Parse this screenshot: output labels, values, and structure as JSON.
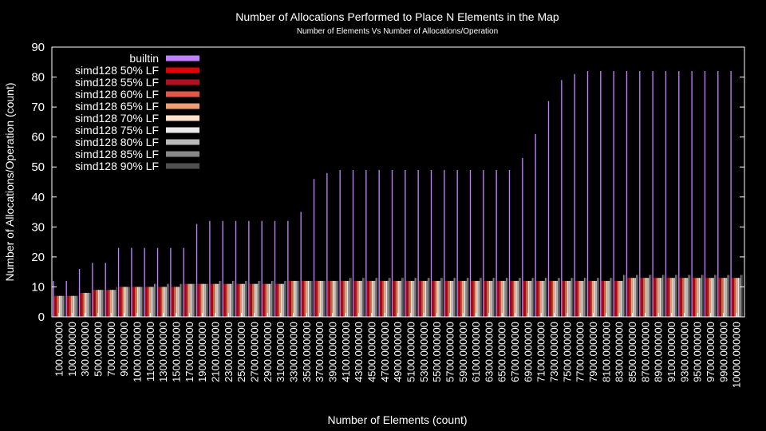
{
  "chart_data": {
    "type": "bar",
    "title": "Number of Allocations Performed to Place N Elements in the Map",
    "subtitle": "Number of Elements Vs Number of Allocations/Operation",
    "xlabel": "Number of Elements (count)",
    "ylabel": "Number of Allocations/Operation (count)",
    "ylim": [
      0,
      90
    ],
    "yticks": [
      "0",
      "10",
      "20",
      "30",
      "40",
      "50",
      "60",
      "70",
      "80",
      "90"
    ],
    "grid": false,
    "legend_position": "top-left",
    "categories": [
      "100.000000",
      "100.000000",
      "300.000000",
      "500.000000",
      "700.000000",
      "900.000000",
      "1000.000000",
      "1100.000000",
      "1300.000000",
      "1500.000000",
      "1700.000000",
      "1900.000000",
      "2100.000000",
      "2300.000000",
      "2500.000000",
      "2700.000000",
      "2900.000000",
      "3100.000000",
      "3300.000000",
      "3500.000000",
      "3700.000000",
      "3900.000000",
      "4100.000000",
      "4300.000000",
      "4500.000000",
      "4700.000000",
      "4900.000000",
      "5100.000000",
      "5300.000000",
      "5500.000000",
      "5700.000000",
      "5900.000000",
      "6100.000000",
      "6300.000000",
      "6500.000000",
      "6700.000000",
      "6900.000000",
      "7100.000000",
      "7300.000000",
      "7500.000000",
      "7700.000000",
      "7900.000000",
      "8100.000000",
      "8300.000000",
      "8500.000000",
      "8700.000000",
      "8900.000000",
      "9100.000000",
      "9300.000000",
      "9500.000000",
      "9700.000000",
      "9900.000000",
      "10000.000000"
    ],
    "series": [
      {
        "name": "builtin",
        "color": "#c080ff",
        "values": [
          12,
          12,
          16,
          18,
          18,
          23,
          23,
          23,
          23,
          23,
          23,
          31,
          32,
          32,
          32,
          32,
          32,
          32,
          32,
          35,
          46,
          48,
          49,
          49,
          49,
          49,
          49,
          49,
          49,
          49,
          49,
          49,
          49,
          49,
          49,
          49,
          53,
          61,
          72,
          79,
          81,
          82,
          82,
          82,
          82,
          82,
          82,
          82,
          82,
          82,
          82,
          82,
          82
        ]
      },
      {
        "name": "simd128 50% LF",
        "color": "#e00000",
        "values": [
          7,
          7,
          8,
          9,
          9,
          10,
          10,
          10,
          10,
          10,
          11,
          11,
          11,
          11,
          11,
          11,
          11,
          11,
          12,
          12,
          12,
          12,
          12,
          12,
          12,
          12,
          12,
          12,
          12,
          12,
          12,
          12,
          12,
          12,
          12,
          12,
          12,
          12,
          12,
          12,
          12,
          12,
          12,
          12,
          13,
          13,
          13,
          13,
          13,
          13,
          13,
          13,
          13
        ]
      },
      {
        "name": "simd128 55% LF",
        "color": "#b01020",
        "values": [
          7,
          7,
          8,
          9,
          9,
          10,
          10,
          10,
          10,
          10,
          11,
          11,
          11,
          11,
          11,
          11,
          11,
          11,
          12,
          12,
          12,
          12,
          12,
          12,
          12,
          12,
          12,
          12,
          12,
          12,
          12,
          12,
          12,
          12,
          12,
          12,
          12,
          12,
          12,
          12,
          12,
          12,
          12,
          12,
          13,
          13,
          13,
          13,
          13,
          13,
          13,
          13,
          13
        ]
      },
      {
        "name": "simd128 60% LF",
        "color": "#e05848",
        "values": [
          7,
          7,
          8,
          9,
          9,
          10,
          10,
          10,
          10,
          10,
          11,
          11,
          11,
          11,
          11,
          11,
          11,
          11,
          12,
          12,
          12,
          12,
          12,
          12,
          12,
          12,
          12,
          12,
          12,
          12,
          12,
          12,
          12,
          12,
          12,
          12,
          12,
          12,
          12,
          12,
          12,
          12,
          12,
          12,
          13,
          13,
          13,
          13,
          13,
          13,
          13,
          13,
          13
        ]
      },
      {
        "name": "simd128 65% LF",
        "color": "#f0a070",
        "values": [
          7,
          7,
          8,
          9,
          9,
          10,
          10,
          10,
          10,
          10,
          11,
          11,
          11,
          11,
          11,
          11,
          11,
          11,
          12,
          12,
          12,
          12,
          12,
          12,
          12,
          12,
          12,
          12,
          12,
          12,
          12,
          12,
          12,
          12,
          12,
          12,
          12,
          12,
          12,
          12,
          12,
          12,
          12,
          12,
          13,
          13,
          13,
          13,
          13,
          13,
          13,
          13,
          13
        ]
      },
      {
        "name": "simd128 70% LF",
        "color": "#ffe0c8",
        "values": [
          7,
          7,
          8,
          9,
          9,
          10,
          10,
          10,
          10,
          10,
          11,
          11,
          11,
          11,
          11,
          11,
          11,
          11,
          12,
          12,
          12,
          12,
          12,
          12,
          12,
          12,
          12,
          12,
          12,
          12,
          12,
          12,
          12,
          12,
          12,
          12,
          12,
          12,
          12,
          12,
          12,
          12,
          12,
          12,
          13,
          13,
          13,
          13,
          13,
          13,
          13,
          13,
          13
        ]
      },
      {
        "name": "simd128 75% LF",
        "color": "#e8e8e8",
        "values": [
          7,
          7,
          8,
          9,
          9,
          10,
          10,
          10,
          10,
          10,
          11,
          11,
          11,
          11,
          11,
          11,
          11,
          11,
          12,
          12,
          12,
          12,
          12,
          12,
          12,
          12,
          12,
          12,
          12,
          12,
          12,
          12,
          12,
          12,
          12,
          12,
          12,
          12,
          12,
          12,
          12,
          12,
          12,
          12,
          13,
          13,
          13,
          13,
          13,
          13,
          13,
          13,
          13
        ]
      },
      {
        "name": "simd128 80% LF",
        "color": "#b8b8b8",
        "values": [
          7,
          7,
          8,
          9,
          9,
          10,
          10,
          10,
          10,
          10,
          11,
          11,
          11,
          11,
          11,
          11,
          11,
          11,
          12,
          12,
          12,
          12,
          12,
          12,
          12,
          12,
          12,
          12,
          12,
          12,
          12,
          12,
          12,
          12,
          12,
          12,
          12,
          12,
          12,
          12,
          12,
          12,
          12,
          12,
          13,
          13,
          13,
          13,
          13,
          13,
          13,
          13,
          13
        ]
      },
      {
        "name": "simd128 85% LF",
        "color": "#888888",
        "values": [
          7,
          7,
          8,
          9,
          9,
          10,
          10,
          11,
          11,
          11,
          11,
          11,
          12,
          12,
          12,
          12,
          12,
          12,
          12,
          12,
          12,
          12,
          13,
          13,
          13,
          13,
          13,
          13,
          13,
          13,
          13,
          13,
          13,
          13,
          13,
          13,
          13,
          13,
          13,
          13,
          13,
          13,
          13,
          14,
          14,
          14,
          14,
          14,
          14,
          14,
          14,
          14,
          14
        ]
      },
      {
        "name": "simd128 90% LF",
        "color": "#505050",
        "values": [
          7,
          7,
          8,
          9,
          10,
          10,
          10,
          11,
          11,
          11,
          11,
          11,
          12,
          12,
          12,
          12,
          12,
          12,
          12,
          12,
          12,
          12,
          13,
          13,
          13,
          13,
          13,
          13,
          13,
          13,
          13,
          13,
          13,
          13,
          13,
          13,
          13,
          13,
          13,
          13,
          13,
          13,
          13,
          14,
          14,
          14,
          14,
          14,
          14,
          14,
          14,
          14,
          14
        ]
      }
    ]
  }
}
